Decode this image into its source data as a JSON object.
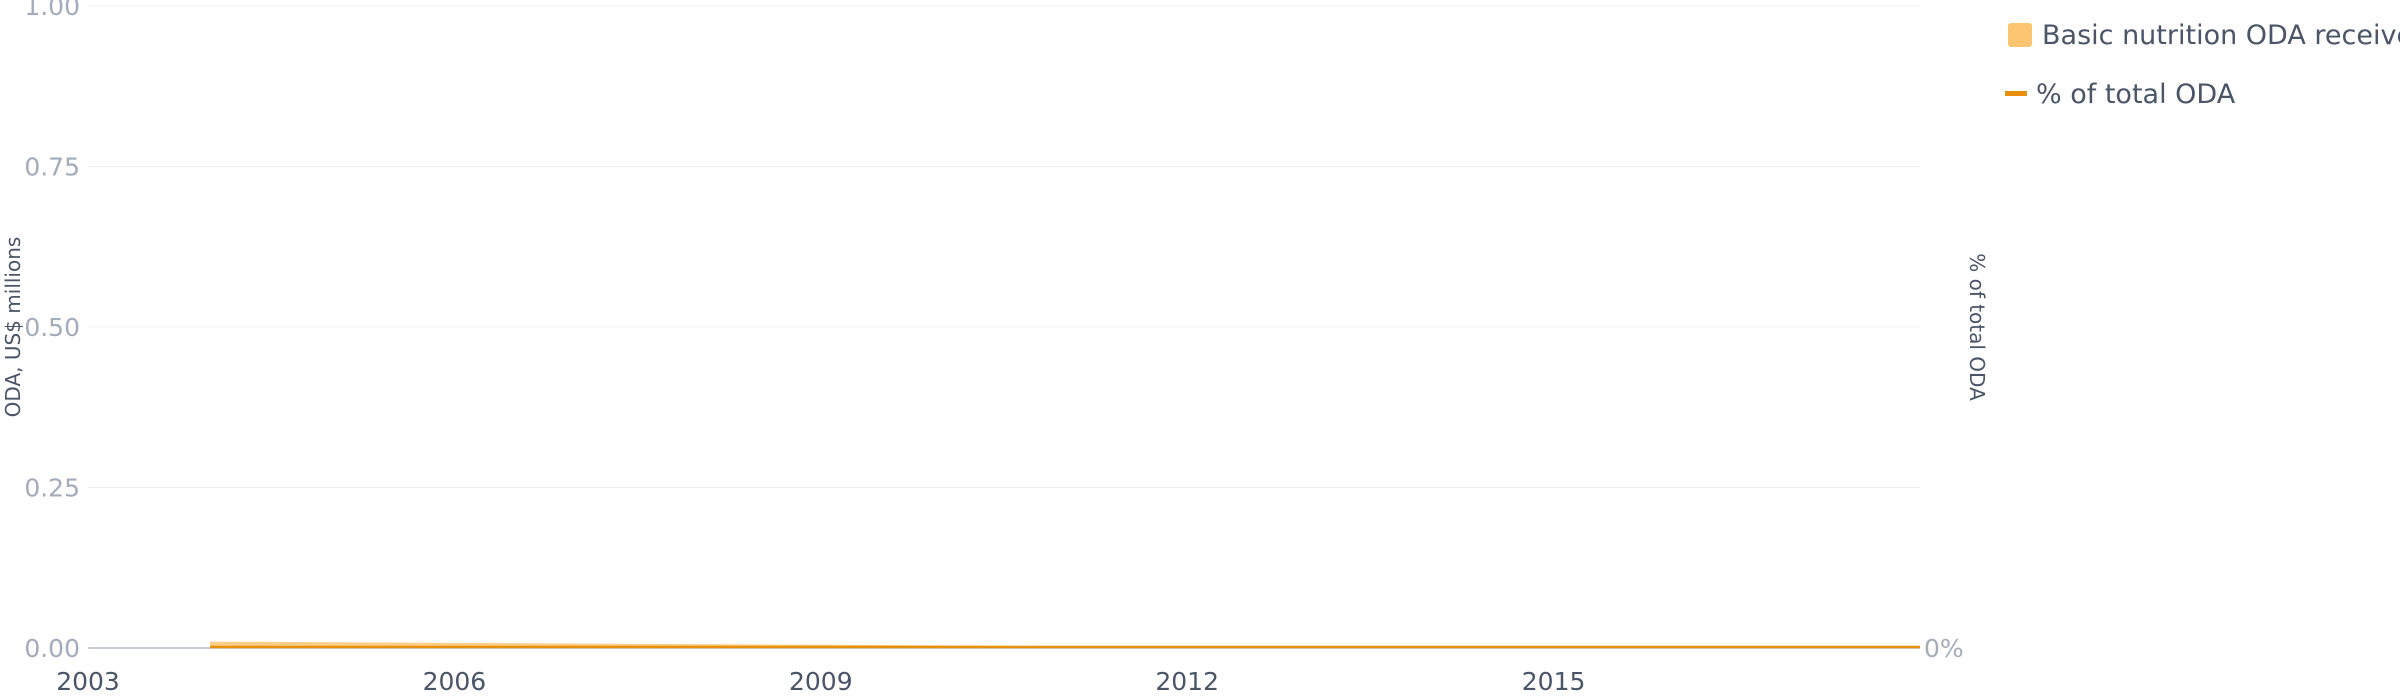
{
  "chart_data": {
    "type": "area",
    "x": [
      2003,
      2004,
      2005,
      2006,
      2007,
      2008,
      2009,
      2010,
      2011,
      2012,
      2013,
      2014,
      2015,
      2016,
      2017,
      2018
    ],
    "series": [
      {
        "name": "Basic nutrition ODA received",
        "type": "area",
        "axis": "left",
        "color": "#fbc572",
        "values": [
          0.01,
          0.01,
          0.009,
          0.008,
          0.007,
          0.006,
          0.005,
          0.004,
          0.003,
          0.002,
          0.002,
          0.001,
          0.001,
          0,
          0,
          0
        ]
      },
      {
        "name": "% of total ODA",
        "type": "line",
        "axis": "right",
        "color": "#e8900c",
        "values": [
          0,
          0,
          0,
          0,
          0,
          0,
          0,
          0,
          0,
          0,
          0,
          0,
          0,
          0,
          0,
          0
        ]
      }
    ],
    "x_ticks": [
      "2003",
      "2006",
      "2009",
      "2012",
      "2015"
    ],
    "y_ticks": [
      "0.00",
      "0.25",
      "0.50",
      "0.75",
      "1.00"
    ],
    "y2_ticks": [
      "0%"
    ],
    "ylabel": "ODA, US$ millions",
    "y2label": "% of total ODA",
    "ylim": [
      0,
      1
    ],
    "grid": true,
    "legend_position": "top-right"
  }
}
